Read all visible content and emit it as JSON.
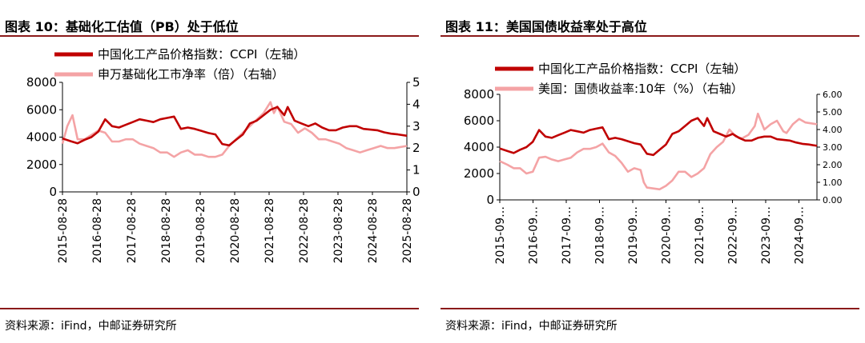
{
  "left": {
    "title": "图表 10：基础化工估值（PB）处于低位",
    "source": "资料来源：iFind，中邮证券研究所"
  },
  "right": {
    "title": "图表 11：美国国债收益率处于高位",
    "source": "资料来源：iFind，中邮证券研究所"
  },
  "colors": {
    "series_main": "#c00000",
    "series_secondary": "#f4a3a5",
    "rule": "#8b1a1a"
  },
  "chart_data": [
    {
      "type": "line",
      "title": "图表 10：基础化工估值（PB）处于低位",
      "x_tick_labels": [
        "2015-08-28",
        "2016-08-28",
        "2017-08-28",
        "2018-08-28",
        "2019-08-28",
        "2020-08-28",
        "2021-08-28",
        "2022-08-28",
        "2023-08-28",
        "2024-08-28",
        "2025-08-28"
      ],
      "xlim": [
        2015.66,
        2025.66
      ],
      "y_left": {
        "lim": [
          0,
          8000
        ],
        "ticks": [
          "0",
          "2000",
          "4000",
          "6000",
          "8000"
        ]
      },
      "y_right": {
        "lim": [
          0,
          5
        ],
        "ticks": [
          "0",
          "1",
          "2",
          "3",
          "4",
          "5"
        ]
      },
      "series": [
        {
          "name": "中国化工产品价格指数：CCPI（左轴）",
          "axis": "left",
          "x": [
            2015.66,
            2015.9,
            2016.1,
            2016.3,
            2016.5,
            2016.7,
            2016.9,
            2017.1,
            2017.3,
            2017.5,
            2017.7,
            2017.9,
            2018.1,
            2018.3,
            2018.5,
            2018.7,
            2018.9,
            2019.1,
            2019.3,
            2019.5,
            2019.7,
            2019.9,
            2020.1,
            2020.3,
            2020.5,
            2020.7,
            2020.9,
            2021.1,
            2021.3,
            2021.5,
            2021.7,
            2021.9,
            2022.1,
            2022.2,
            2022.4,
            2022.6,
            2022.8,
            2023.0,
            2023.2,
            2023.4,
            2023.6,
            2023.8,
            2024.0,
            2024.2,
            2024.4,
            2024.6,
            2024.8,
            2025.0,
            2025.2,
            2025.4,
            2025.66
          ],
          "y": [
            3900,
            3700,
            3550,
            3800,
            4000,
            4400,
            5300,
            4800,
            4700,
            4900,
            5100,
            5300,
            5200,
            5100,
            5300,
            5400,
            5500,
            4600,
            4700,
            4600,
            4450,
            4300,
            4200,
            3500,
            3400,
            3800,
            4200,
            5000,
            5200,
            5600,
            6000,
            6200,
            5600,
            6200,
            5200,
            5000,
            4800,
            5000,
            4700,
            4500,
            4500,
            4700,
            4800,
            4800,
            4600,
            4550,
            4500,
            4350,
            4250,
            4200,
            4100
          ]
        },
        {
          "name": "申万基础化工市净率（倍）（右轴）",
          "axis": "right",
          "x": [
            2015.66,
            2015.8,
            2015.95,
            2016.1,
            2016.3,
            2016.5,
            2016.7,
            2016.9,
            2017.1,
            2017.3,
            2017.5,
            2017.7,
            2017.9,
            2018.1,
            2018.3,
            2018.5,
            2018.7,
            2018.9,
            2019.1,
            2019.3,
            2019.5,
            2019.7,
            2019.9,
            2020.1,
            2020.3,
            2020.5,
            2020.7,
            2020.9,
            2021.1,
            2021.3,
            2021.5,
            2021.7,
            2021.8,
            2021.9,
            2022.1,
            2022.3,
            2022.5,
            2022.7,
            2022.9,
            2023.1,
            2023.3,
            2023.5,
            2023.7,
            2023.9,
            2024.1,
            2024.3,
            2024.5,
            2024.7,
            2024.9,
            2025.1,
            2025.3,
            2025.66
          ],
          "y": [
            2.2,
            3.0,
            3.5,
            2.4,
            2.4,
            2.6,
            2.8,
            2.7,
            2.3,
            2.3,
            2.4,
            2.4,
            2.2,
            2.1,
            2.0,
            1.8,
            1.8,
            1.6,
            1.8,
            1.9,
            1.7,
            1.7,
            1.6,
            1.6,
            1.7,
            2.1,
            2.4,
            2.7,
            3.0,
            3.3,
            3.6,
            4.1,
            3.6,
            3.9,
            3.2,
            3.1,
            2.7,
            2.9,
            2.7,
            2.4,
            2.4,
            2.3,
            2.2,
            2.0,
            1.9,
            1.8,
            1.9,
            2.0,
            2.1,
            2.0,
            2.0,
            2.1
          ]
        }
      ]
    },
    {
      "type": "line",
      "title": "图表 11：美国国债收益率处于高位",
      "x_tick_labels": [
        "2015-09…",
        "2016-09…",
        "2017-09…",
        "2018-09…",
        "2019-09…",
        "2020-09…",
        "2021-09…",
        "2022-09…",
        "2023-09…",
        "2024-09…"
      ],
      "xlim": [
        2015.66,
        2025.66
      ],
      "y_left": {
        "lim": [
          0,
          8000
        ],
        "ticks": [
          "0",
          "2000",
          "4000",
          "6000",
          "8000"
        ]
      },
      "y_right": {
        "lim": [
          0,
          6
        ],
        "ticks": [
          "0.00",
          "1.00",
          "2.00",
          "3.00",
          "4.00",
          "5.00",
          "6.00"
        ]
      },
      "series": [
        {
          "name": "中国化工产品价格指数：CCPI（左轴）",
          "axis": "left",
          "x": [
            2015.66,
            2015.9,
            2016.1,
            2016.3,
            2016.5,
            2016.7,
            2016.9,
            2017.1,
            2017.3,
            2017.5,
            2017.7,
            2017.9,
            2018.1,
            2018.3,
            2018.5,
            2018.7,
            2018.9,
            2019.1,
            2019.3,
            2019.5,
            2019.7,
            2019.9,
            2020.1,
            2020.3,
            2020.5,
            2020.7,
            2020.9,
            2021.1,
            2021.3,
            2021.5,
            2021.7,
            2021.9,
            2022.1,
            2022.2,
            2022.4,
            2022.6,
            2022.8,
            2023.0,
            2023.2,
            2023.4,
            2023.6,
            2023.8,
            2024.0,
            2024.2,
            2024.4,
            2024.6,
            2024.8,
            2025.0,
            2025.2,
            2025.4,
            2025.66
          ],
          "y": [
            3900,
            3700,
            3550,
            3800,
            4000,
            4400,
            5300,
            4800,
            4700,
            4900,
            5100,
            5300,
            5200,
            5100,
            5300,
            5400,
            5500,
            4600,
            4700,
            4600,
            4450,
            4300,
            4200,
            3500,
            3400,
            3800,
            4200,
            5000,
            5200,
            5600,
            6000,
            6200,
            5600,
            6200,
            5200,
            5000,
            4800,
            5000,
            4700,
            4500,
            4500,
            4700,
            4800,
            4800,
            4600,
            4550,
            4500,
            4350,
            4250,
            4200,
            4100
          ]
        },
        {
          "name": "美国：国债收益率:10年（%）（右轴）",
          "axis": "right",
          "x": [
            2015.66,
            2015.9,
            2016.1,
            2016.3,
            2016.5,
            2016.7,
            2016.9,
            2017.1,
            2017.3,
            2017.5,
            2017.7,
            2017.9,
            2018.1,
            2018.3,
            2018.5,
            2018.7,
            2018.9,
            2019.1,
            2019.3,
            2019.5,
            2019.7,
            2019.9,
            2020.1,
            2020.2,
            2020.3,
            2020.5,
            2020.7,
            2020.9,
            2021.1,
            2021.3,
            2021.5,
            2021.7,
            2021.9,
            2022.1,
            2022.3,
            2022.5,
            2022.7,
            2022.9,
            2023.1,
            2023.3,
            2023.5,
            2023.7,
            2023.8,
            2024.0,
            2024.2,
            2024.4,
            2024.6,
            2024.7,
            2024.9,
            2025.1,
            2025.3,
            2025.66
          ],
          "y": [
            2.2,
            2.0,
            1.8,
            1.8,
            1.5,
            1.6,
            2.4,
            2.45,
            2.3,
            2.2,
            2.3,
            2.4,
            2.7,
            2.9,
            2.9,
            3.0,
            3.2,
            2.7,
            2.5,
            2.1,
            1.6,
            1.8,
            1.7,
            1.0,
            0.7,
            0.65,
            0.6,
            0.8,
            1.1,
            1.6,
            1.6,
            1.3,
            1.5,
            1.8,
            2.6,
            3.0,
            3.3,
            4.0,
            3.6,
            3.5,
            3.7,
            4.2,
            4.9,
            4.0,
            4.3,
            4.5,
            3.9,
            3.8,
            4.3,
            4.6,
            4.4,
            4.3
          ]
        }
      ]
    }
  ]
}
